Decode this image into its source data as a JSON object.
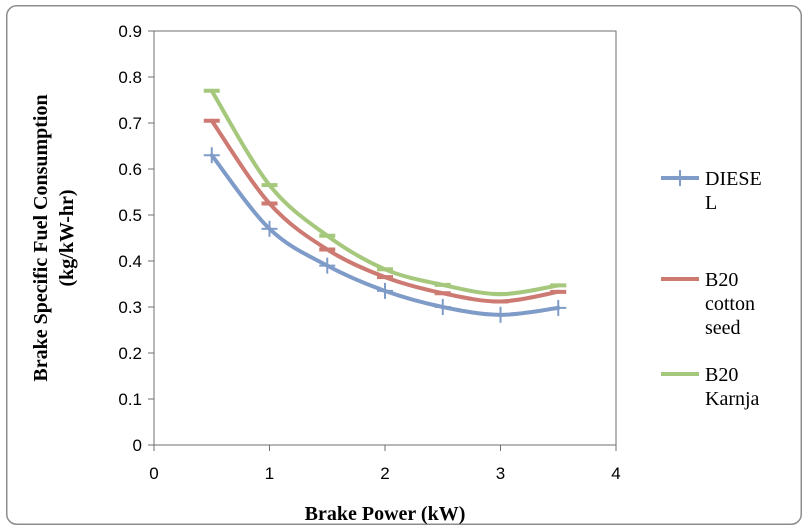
{
  "chart_data": {
    "type": "line",
    "title": "",
    "xlabel": "Brake Power (kW)",
    "ylabel": [
      "Brake Specific Fuel Consumption",
      "(kg/kW-hr)"
    ],
    "xlim": [
      0,
      4
    ],
    "ylim": [
      0,
      0.9
    ],
    "x_ticks": [
      "0",
      "1",
      "2",
      "3",
      "4"
    ],
    "y_ticks": [
      "0",
      "0.1",
      "0.2",
      "0.3",
      "0.4",
      "0.5",
      "0.6",
      "0.7",
      "0.8",
      "0.9"
    ],
    "grid": false,
    "legend_position": "right",
    "series": [
      {
        "name": "DIESEL",
        "legend_lines": [
          "DIESE",
          "L"
        ],
        "color": "#7f9bc8",
        "marker": "plus",
        "x": [
          0.5,
          1.0,
          1.5,
          2.0,
          2.5,
          3.0,
          3.5
        ],
        "y": [
          0.63,
          0.47,
          0.39,
          0.335,
          0.3,
          0.283,
          0.298
        ]
      },
      {
        "name": "B20 cotton seed",
        "legend_lines": [
          "B20",
          "cotton",
          "seed"
        ],
        "color": "#cd7a72",
        "marker": "dash",
        "x": [
          0.5,
          1.0,
          1.5,
          2.0,
          2.5,
          3.0,
          3.5
        ],
        "y": [
          0.705,
          0.525,
          0.425,
          0.365,
          0.33,
          0.312,
          0.333
        ]
      },
      {
        "name": "B20 Karnja",
        "legend_lines": [
          "B20",
          "Karnja"
        ],
        "color": "#a5c87c",
        "marker": "dash",
        "x": [
          0.5,
          1.0,
          1.5,
          2.0,
          2.5,
          3.0,
          3.5
        ],
        "y": [
          0.77,
          0.565,
          0.455,
          0.382,
          0.348,
          0.328,
          0.347
        ]
      }
    ]
  }
}
